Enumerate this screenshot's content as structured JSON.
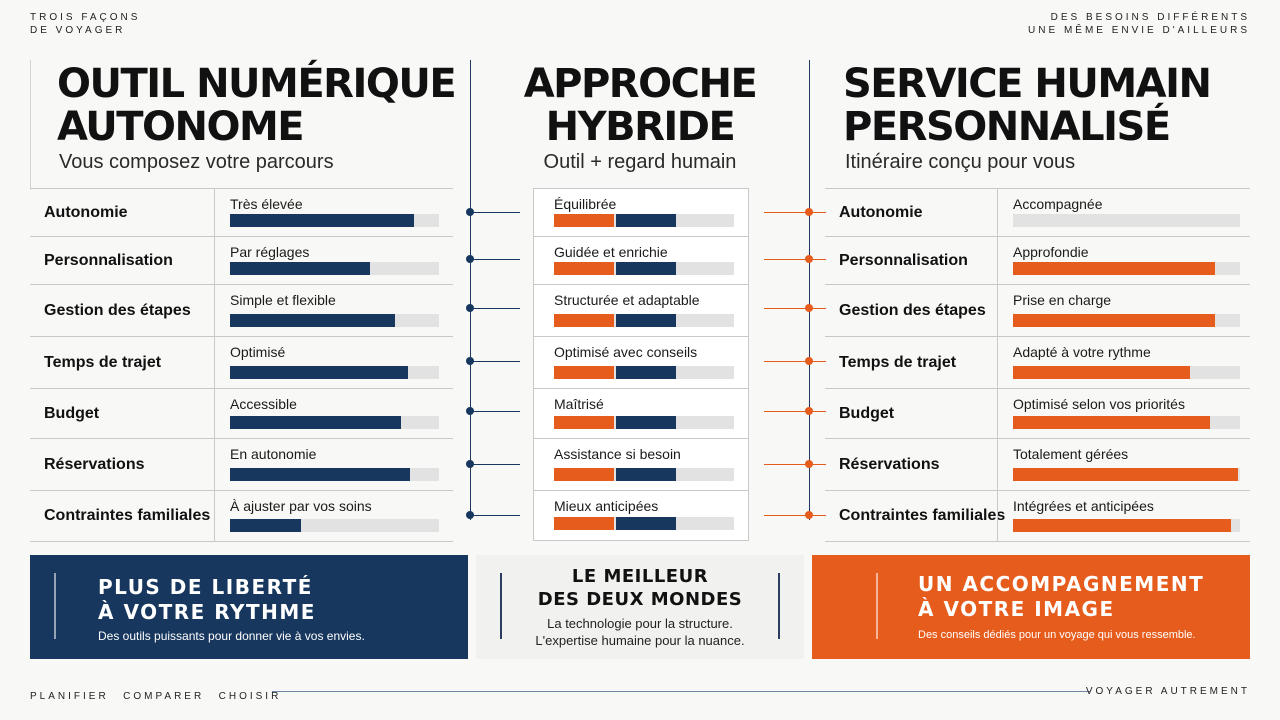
{
  "header": {
    "left": "TROIS FAÇONS\nDE VOYAGER",
    "right": "DES BESOINS DIFFÉRENTS\nUNE MÊME ENVIE D'AILLEURS"
  },
  "colors": {
    "navy": "#17375e",
    "orange": "#e65c1c",
    "track": "#e2e2e2"
  },
  "rows": [
    "Autonomie",
    "Personnalisation",
    "Gestion des étapes",
    "Temps de trajet",
    "Budget",
    "Réservations",
    "Contraintes familiales"
  ],
  "columns": {
    "digital": {
      "title": "OUTIL NUMÉRIQUE\nAUTONOME",
      "subtitle": "Vous composez votre parcours",
      "values": [
        "Très élevée",
        "Par réglages",
        "Simple et flexible",
        "Optimisé",
        "Accessible",
        "En autonomie",
        "À ajuster par vos soins"
      ],
      "levels": [
        0.88,
        0.67,
        0.79,
        0.85,
        0.82,
        0.86,
        0.34
      ]
    },
    "hybrid": {
      "title": "APPROCHE\nHYBRIDE",
      "subtitle": "Outil + regard humain",
      "values": [
        "Équilibrée",
        "Guidée et enrichie",
        "Structurée et adaptable",
        "Optimisé avec conseils",
        "Maîtrisé",
        "Assistance si besoin",
        "Mieux anticipées"
      ]
    },
    "human": {
      "title": "SERVICE HUMAIN\nPERSONNALISÉ",
      "subtitle": "Itinéraire conçu pour vous",
      "values": [
        "Accompagnée",
        "Approfondie",
        "Prise en charge",
        "Adapté à votre rythme",
        "Optimisé selon vos priorités",
        "Totalement gérées",
        "Intégrées et anticipées"
      ],
      "levels": [
        0,
        0.89,
        0.89,
        0.78,
        0.87,
        0.99,
        0.96
      ]
    }
  },
  "panels": {
    "left": {
      "title": "PLUS DE LIBERTÉ\nÀ VOTRE RYTHME",
      "text": "Des outils puissants pour donner vie à vos envies."
    },
    "middle": {
      "title": "LE MEILLEUR\nDES DEUX MONDES",
      "text": "La technologie pour la structure.\nL'expertise humaine pour la nuance."
    },
    "right": {
      "title": "UN ACCOMPAGNEMENT\nÀ VOTRE IMAGE",
      "text": "Des conseils dédiés pour un voyage qui vous ressemble."
    }
  },
  "footer": {
    "words": [
      "PLANIFIER",
      "COMPARER",
      "CHOISIR"
    ],
    "right": "VOYAGER AUTREMENT"
  }
}
